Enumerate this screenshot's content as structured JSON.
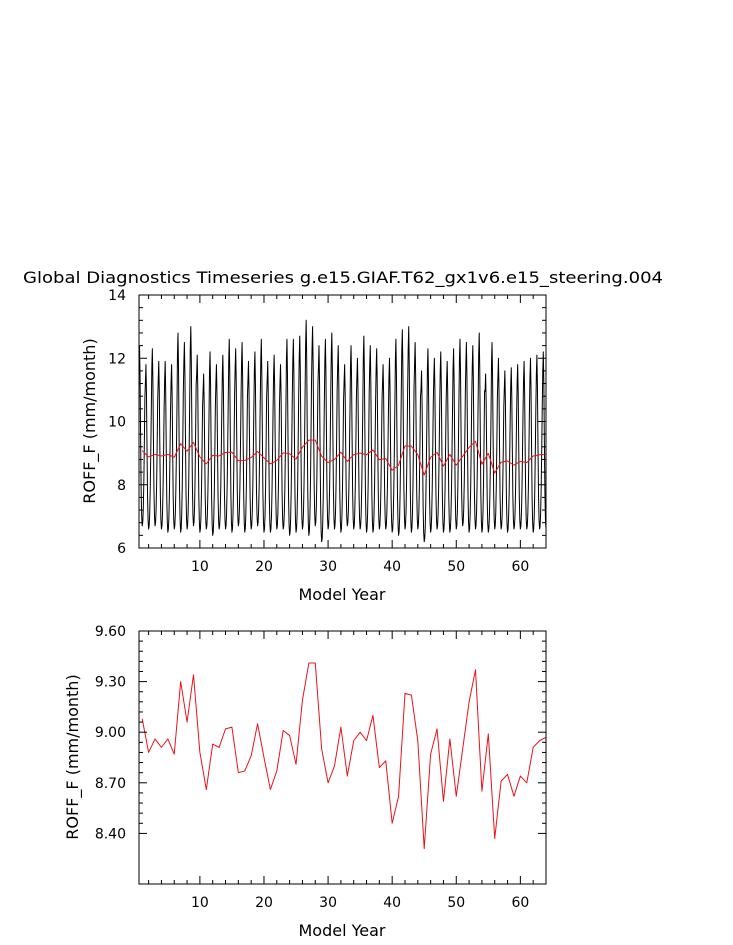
{
  "title": "Global Diagnostics Timeseries g.e15.GIAF.T62_gx1v6.e15_steering.004",
  "colors": {
    "monthly": "#000000",
    "annual": "#e8141c",
    "frame": "#000000"
  },
  "chart_data": [
    {
      "type": "line",
      "xlabel": "Model Year",
      "ylabel": "ROFF_F (mm/month)",
      "xlim": [
        0.5,
        64
      ],
      "ylim": [
        6,
        14
      ],
      "xticks": [
        10,
        20,
        30,
        40,
        50,
        60
      ],
      "xtick_labels": [
        "10",
        "20",
        "30",
        "40",
        "50",
        "60"
      ],
      "yticks": [
        6,
        8,
        10,
        12,
        14
      ],
      "ytick_labels": [
        "6",
        "8",
        "10",
        "12",
        "14"
      ],
      "series": [
        {
          "style": "monthly",
          "color": "#000000",
          "x_start": 0.5,
          "x_step": 0.08333,
          "seasonal_cycle": [
            11.6,
            12.2,
            11.2,
            9.4,
            7.8,
            7.0,
            6.7,
            6.8,
            7.2,
            8.0,
            9.2,
            10.6
          ],
          "peaks": [
            12.4,
            11.8,
            12.3,
            11.9,
            11.9,
            11.8,
            12.8,
            12.5,
            13.0,
            12.1,
            11.5,
            12.2,
            11.8,
            12.1,
            12.6,
            12.3,
            12.5,
            11.9,
            12.2,
            12.6,
            11.9,
            12.1,
            11.8,
            12.6,
            12.6,
            12.7,
            13.2,
            13.0,
            12.4,
            12.6,
            12.8,
            12.4,
            11.8,
            12.4,
            12.0,
            12.7,
            12.4,
            12.3,
            11.8,
            12.0,
            12.6,
            12.9,
            13.0,
            12.5,
            11.6,
            12.3,
            12.0,
            12.2,
            11.9,
            12.3,
            12.6,
            12.5,
            12.4,
            12.8,
            11.5,
            12.5,
            12.0,
            11.6,
            11.7,
            11.8,
            11.9,
            12.0,
            12.1,
            12.2
          ],
          "troughs": [
            6.7,
            6.6,
            6.7,
            6.6,
            6.5,
            6.6,
            6.5,
            6.6,
            6.7,
            6.5,
            6.6,
            6.4,
            6.6,
            6.6,
            6.5,
            6.7,
            6.5,
            6.6,
            6.7,
            6.5,
            6.5,
            6.6,
            6.6,
            6.4,
            6.5,
            6.6,
            6.4,
            6.7,
            6.2,
            6.6,
            6.6,
            6.5,
            6.7,
            6.6,
            6.6,
            6.5,
            6.5,
            6.6,
            6.6,
            6.5,
            6.4,
            6.6,
            6.5,
            6.6,
            6.2,
            6.5,
            6.6,
            6.5,
            6.5,
            6.6,
            6.7,
            6.5,
            6.6,
            6.5,
            6.5,
            6.6,
            6.6,
            6.5,
            6.6,
            6.6,
            6.6,
            6.5,
            6.6,
            6.6
          ]
        },
        {
          "style": "annual",
          "color": "#e8141c",
          "x": [
            1,
            2,
            3,
            4,
            5,
            6,
            7,
            8,
            9,
            10,
            11,
            12,
            13,
            14,
            15,
            16,
            17,
            18,
            19,
            20,
            21,
            22,
            23,
            24,
            25,
            26,
            27,
            28,
            29,
            30,
            31,
            32,
            33,
            34,
            35,
            36,
            37,
            38,
            39,
            40,
            41,
            42,
            43,
            44,
            45,
            46,
            47,
            48,
            49,
            50,
            51,
            52,
            53,
            54,
            55,
            56,
            57,
            58,
            59,
            60,
            61,
            62,
            63,
            64
          ],
          "values": [
            9.08,
            8.88,
            8.96,
            8.91,
            8.96,
            8.87,
            9.3,
            9.06,
            9.34,
            8.88,
            8.66,
            8.93,
            8.91,
            9.02,
            9.03,
            8.76,
            8.77,
            8.86,
            9.05,
            8.85,
            8.66,
            8.77,
            9.01,
            8.98,
            8.81,
            9.19,
            9.41,
            9.41,
            8.9,
            8.7,
            8.8,
            9.03,
            8.74,
            8.95,
            9.0,
            8.95,
            9.1,
            8.79,
            8.83,
            8.46,
            8.62,
            9.23,
            9.22,
            8.95,
            8.31,
            8.87,
            9.02,
            8.59,
            8.96,
            8.62,
            8.9,
            9.18,
            9.37,
            8.65,
            8.99,
            8.37,
            8.71,
            8.75,
            8.62,
            8.74,
            8.7,
            8.91,
            8.95,
            8.97
          ]
        }
      ]
    },
    {
      "type": "line",
      "xlabel": "Model Year",
      "ylabel": "ROFF_F (mm/month)",
      "xlim": [
        0.5,
        64
      ],
      "ylim": [
        8.1,
        9.6
      ],
      "xticks": [
        10,
        20,
        30,
        40,
        50,
        60
      ],
      "xtick_labels": [
        "10",
        "20",
        "30",
        "40",
        "50",
        "60"
      ],
      "yticks": [
        8.4,
        8.7,
        9.0,
        9.3,
        9.6
      ],
      "ytick_labels": [
        "8.40",
        "8.70",
        "9.00",
        "9.30",
        "9.60"
      ],
      "series": [
        {
          "style": "annual",
          "color": "#e8141c",
          "x": [
            1,
            2,
            3,
            4,
            5,
            6,
            7,
            8,
            9,
            10,
            11,
            12,
            13,
            14,
            15,
            16,
            17,
            18,
            19,
            20,
            21,
            22,
            23,
            24,
            25,
            26,
            27,
            28,
            29,
            30,
            31,
            32,
            33,
            34,
            35,
            36,
            37,
            38,
            39,
            40,
            41,
            42,
            43,
            44,
            45,
            46,
            47,
            48,
            49,
            50,
            51,
            52,
            53,
            54,
            55,
            56,
            57,
            58,
            59,
            60,
            61,
            62,
            63,
            64
          ],
          "values": [
            9.08,
            8.88,
            8.96,
            8.91,
            8.96,
            8.87,
            9.3,
            9.06,
            9.34,
            8.88,
            8.66,
            8.93,
            8.91,
            9.02,
            9.03,
            8.76,
            8.77,
            8.86,
            9.05,
            8.85,
            8.66,
            8.77,
            9.01,
            8.98,
            8.81,
            9.19,
            9.41,
            9.41,
            8.9,
            8.7,
            8.8,
            9.03,
            8.74,
            8.95,
            9.0,
            8.95,
            9.1,
            8.79,
            8.83,
            8.46,
            8.62,
            9.23,
            9.22,
            8.95,
            8.31,
            8.87,
            9.02,
            8.59,
            8.96,
            8.62,
            8.9,
            9.18,
            9.37,
            8.65,
            8.99,
            8.37,
            8.71,
            8.75,
            8.62,
            8.74,
            8.7,
            8.91,
            8.95,
            8.97
          ]
        }
      ]
    }
  ]
}
